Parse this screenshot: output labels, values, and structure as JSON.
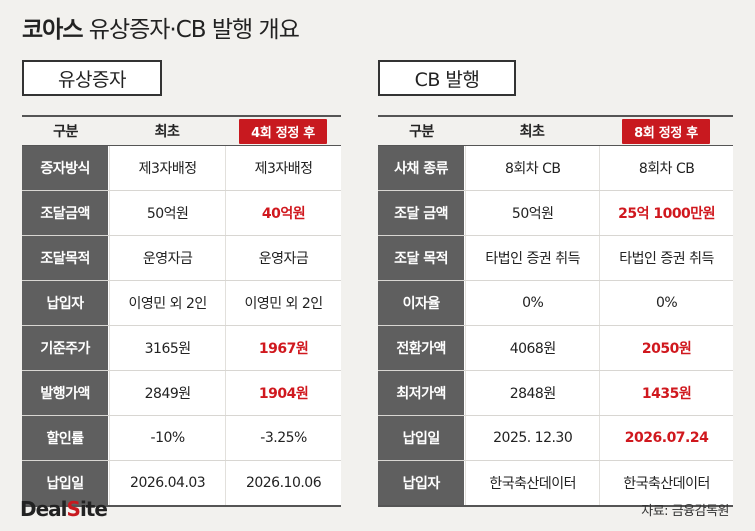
{
  "title": {
    "bold": "코아스",
    "rest": "유상증자·CB 발행 개요"
  },
  "left": {
    "section_label": "유상증자",
    "headers": {
      "category": "구분",
      "initial": "최초",
      "revised": "4회 정정 후"
    },
    "rows": [
      {
        "label": "증자방식",
        "initial": "제3자배정",
        "revised": "제3자배정",
        "highlight": false
      },
      {
        "label": "조달금액",
        "initial": "50억원",
        "revised": "40억원",
        "highlight": true
      },
      {
        "label": "조달목적",
        "initial": "운영자금",
        "revised": "운영자금",
        "highlight": false
      },
      {
        "label": "납입자",
        "initial": "이영민 외 2인",
        "revised": "이영민 외 2인",
        "highlight": false
      },
      {
        "label": "기준주가",
        "initial": "3165원",
        "revised": "1967원",
        "highlight": true
      },
      {
        "label": "발행가액",
        "initial": "2849원",
        "revised": "1904원",
        "highlight": true
      },
      {
        "label": "할인률",
        "initial": "-10%",
        "revised": "-3.25%",
        "highlight": false
      },
      {
        "label": "납입일",
        "initial": "2026.04.03",
        "revised": "2026.10.06",
        "highlight": false
      }
    ]
  },
  "right": {
    "section_label": "CB 발행",
    "headers": {
      "category": "구분",
      "initial": "최초",
      "revised": "8회 정정 후"
    },
    "rows": [
      {
        "label": "사채 종류",
        "initial": "8회차 CB",
        "revised": "8회차 CB",
        "highlight": false
      },
      {
        "label": "조달 금액",
        "initial": "50억원",
        "revised": "25억 1000만원",
        "highlight": true
      },
      {
        "label": "조달 목적",
        "initial": "타법인 증권 취득",
        "revised": "타법인 증권 취득",
        "highlight": false
      },
      {
        "label": "이자율",
        "initial": "0%",
        "revised": "0%",
        "highlight": false
      },
      {
        "label": "전환가액",
        "initial": "4068원",
        "revised": "2050원",
        "highlight": true
      },
      {
        "label": "최저가액",
        "initial": "2848원",
        "revised": "1435원",
        "highlight": true
      },
      {
        "label": "납입일",
        "initial": "2025. 12.30",
        "revised": "2026.07.24",
        "highlight": true
      },
      {
        "label": "납입자",
        "initial": "한국축산데이터",
        "revised": "한국축산데이터",
        "highlight": false
      }
    ]
  },
  "footer": {
    "logo_deal": "Deal",
    "logo_s": "S",
    "logo_ite": "ite",
    "source": "자료: 금융감독원"
  },
  "colors": {
    "accent": "#c8191f",
    "label_bg": "#5f5f5f",
    "background": "#f2f1ee"
  }
}
